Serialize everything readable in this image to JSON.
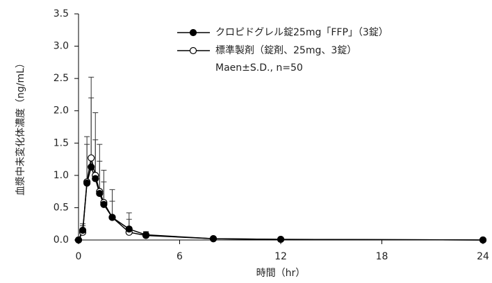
{
  "chart_data": {
    "type": "line",
    "x_label": "時間（hr）",
    "y_label": "血漿中未変化体濃度（ng/mL）",
    "note": "Maen±S.D., n=50",
    "x": [
      0,
      0.25,
      0.5,
      0.75,
      1,
      1.25,
      1.5,
      2,
      3,
      4,
      8,
      12,
      24
    ],
    "series": [
      {
        "name": "クロピドグレル錠25mg「FFP」（3錠）",
        "color": "#000000",
        "marker_fill": "#000000",
        "values": [
          0,
          0.15,
          0.88,
          1.13,
          0.95,
          0.72,
          0.55,
          0.35,
          0.17,
          0.08,
          0.02,
          0.01,
          0
        ],
        "errors": [
          0,
          0.1,
          0.6,
          1.07,
          0.6,
          0.5,
          0.35,
          0.25,
          0.15,
          0.05,
          0.02,
          0.01,
          0
        ]
      },
      {
        "name": "標準製剤（錠剤、25mg、3錠）",
        "color": "#000000",
        "marker_fill": "#ffffff",
        "values": [
          0,
          0.12,
          0.9,
          1.27,
          1.0,
          0.75,
          0.58,
          0.35,
          0.12,
          0.07,
          0.02,
          0.01,
          0
        ],
        "errors": [
          0,
          0.1,
          0.7,
          1.25,
          0.97,
          0.73,
          0.5,
          0.43,
          0.3,
          0.05,
          0.02,
          0.01,
          0
        ]
      }
    ],
    "xlim": [
      0,
      24
    ],
    "xticks": [
      0,
      6,
      12,
      18,
      24
    ],
    "ylim": [
      0,
      3.5
    ],
    "yticks": [
      {
        "value": 0,
        "label": "0.0"
      },
      0.5,
      {
        "value": 1,
        "label": "1.0"
      },
      1.5,
      {
        "value": 2,
        "label": "2.0"
      },
      2.5,
      {
        "value": 3,
        "label": "3.0"
      },
      3.5
    ],
    "grid": false
  }
}
